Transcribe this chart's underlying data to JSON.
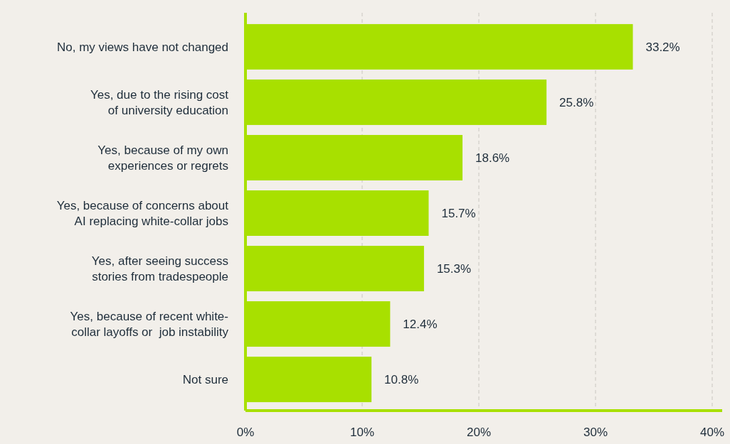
{
  "chart_data": {
    "type": "bar",
    "orientation": "horizontal",
    "categories": [
      "No, my views have not changed",
      "Yes, due to the rising cost\nof university education",
      "Yes, because of my own\nexperiences or regrets",
      "Yes, because of concerns about\nAI replacing white-collar jobs",
      "Yes, after seeing success\nstories from tradespeople",
      "Yes, because of recent white-\ncollar layoffs or  job instability",
      "Not sure"
    ],
    "values": [
      33.2,
      25.8,
      18.6,
      15.7,
      15.3,
      12.4,
      10.8
    ],
    "value_labels": [
      "33.2%",
      "25.8%",
      "18.6%",
      "15.7%",
      "15.3%",
      "12.4%",
      "10.8%"
    ],
    "color": "#a8e000",
    "xlim": [
      0,
      40
    ],
    "xticks": [
      {
        "value": 0,
        "label": "0%"
      },
      {
        "value": 10,
        "label": "10%"
      },
      {
        "value": 20,
        "label": "20%"
      },
      {
        "value": 30,
        "label": "30%"
      },
      {
        "value": 40,
        "label": "40%"
      }
    ],
    "grid": "x"
  }
}
